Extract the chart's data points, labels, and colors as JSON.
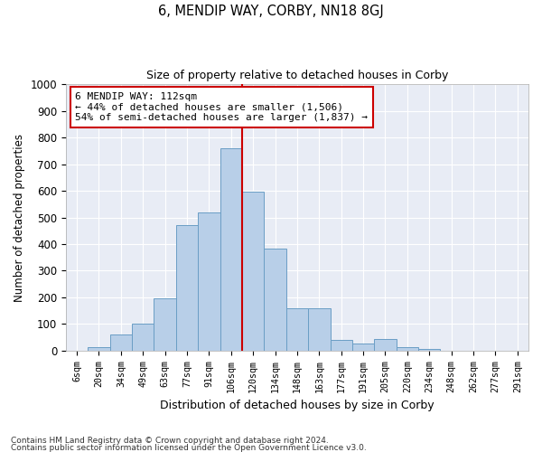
{
  "title": "6, MENDIP WAY, CORBY, NN18 8GJ",
  "subtitle": "Size of property relative to detached houses in Corby",
  "xlabel": "Distribution of detached houses by size in Corby",
  "ylabel": "Number of detached properties",
  "footnote1": "Contains HM Land Registry data © Crown copyright and database right 2024.",
  "footnote2": "Contains public sector information licensed under the Open Government Licence v3.0.",
  "bar_labels": [
    "6sqm",
    "20sqm",
    "34sqm",
    "49sqm",
    "63sqm",
    "77sqm",
    "91sqm",
    "106sqm",
    "120sqm",
    "134sqm",
    "148sqm",
    "163sqm",
    "177sqm",
    "191sqm",
    "205sqm",
    "220sqm",
    "234sqm",
    "248sqm",
    "262sqm",
    "277sqm",
    "291sqm"
  ],
  "bar_values": [
    0,
    12,
    62,
    100,
    198,
    470,
    520,
    760,
    595,
    383,
    160,
    160,
    40,
    27,
    43,
    12,
    7,
    0,
    0,
    0,
    0
  ],
  "bar_color": "#b8cfe8",
  "bar_edgecolor": "#6a9ec5",
  "bg_color": "#e8ecf5",
  "grid_color": "#ffffff",
  "vline_color": "#cc0000",
  "annotation_line1": "6 MENDIP WAY: 112sqm",
  "annotation_line2": "← 44% of detached houses are smaller (1,506)",
  "annotation_line3": "54% of semi-detached houses are larger (1,837) →",
  "annotation_box_color": "#ffffff",
  "annotation_box_edgecolor": "#cc0000",
  "ylim": [
    0,
    1000
  ],
  "yticks": [
    0,
    100,
    200,
    300,
    400,
    500,
    600,
    700,
    800,
    900,
    1000
  ]
}
